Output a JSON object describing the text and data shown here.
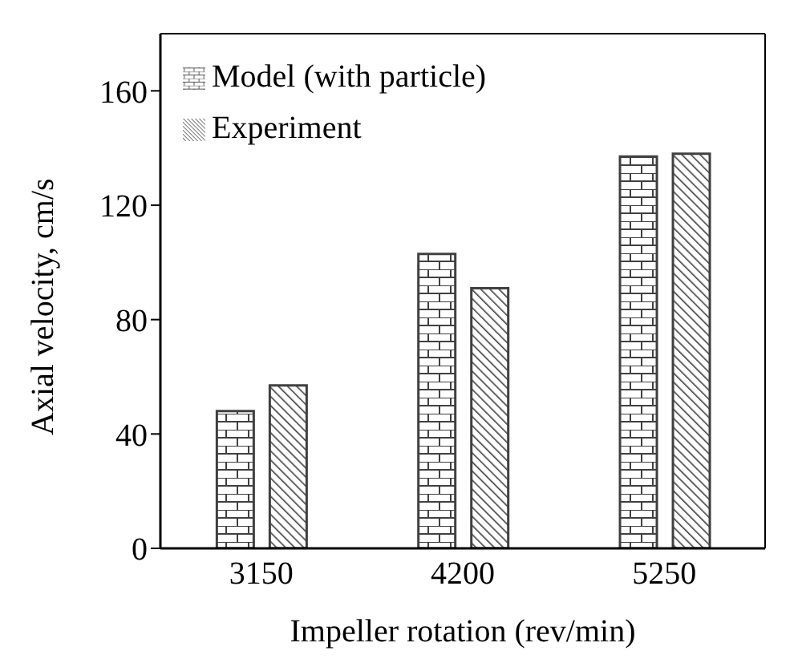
{
  "chart_data": {
    "type": "bar",
    "xlabel": "Impeller rotation (rev/min)",
    "ylabel": "Axial velocity, cm/s",
    "categories": [
      "3150",
      "4200",
      "5250"
    ],
    "series": [
      {
        "name": "Model (with particle)",
        "color": "#404040",
        "values": [
          48,
          103,
          137
        ]
      },
      {
        "name": "Experiment",
        "color": "#404040",
        "values": [
          57,
          91,
          138
        ]
      }
    ],
    "ylim": [
      0,
      180
    ],
    "yticks": [
      0,
      40,
      80,
      120,
      160
    ],
    "legend": "top left"
  }
}
